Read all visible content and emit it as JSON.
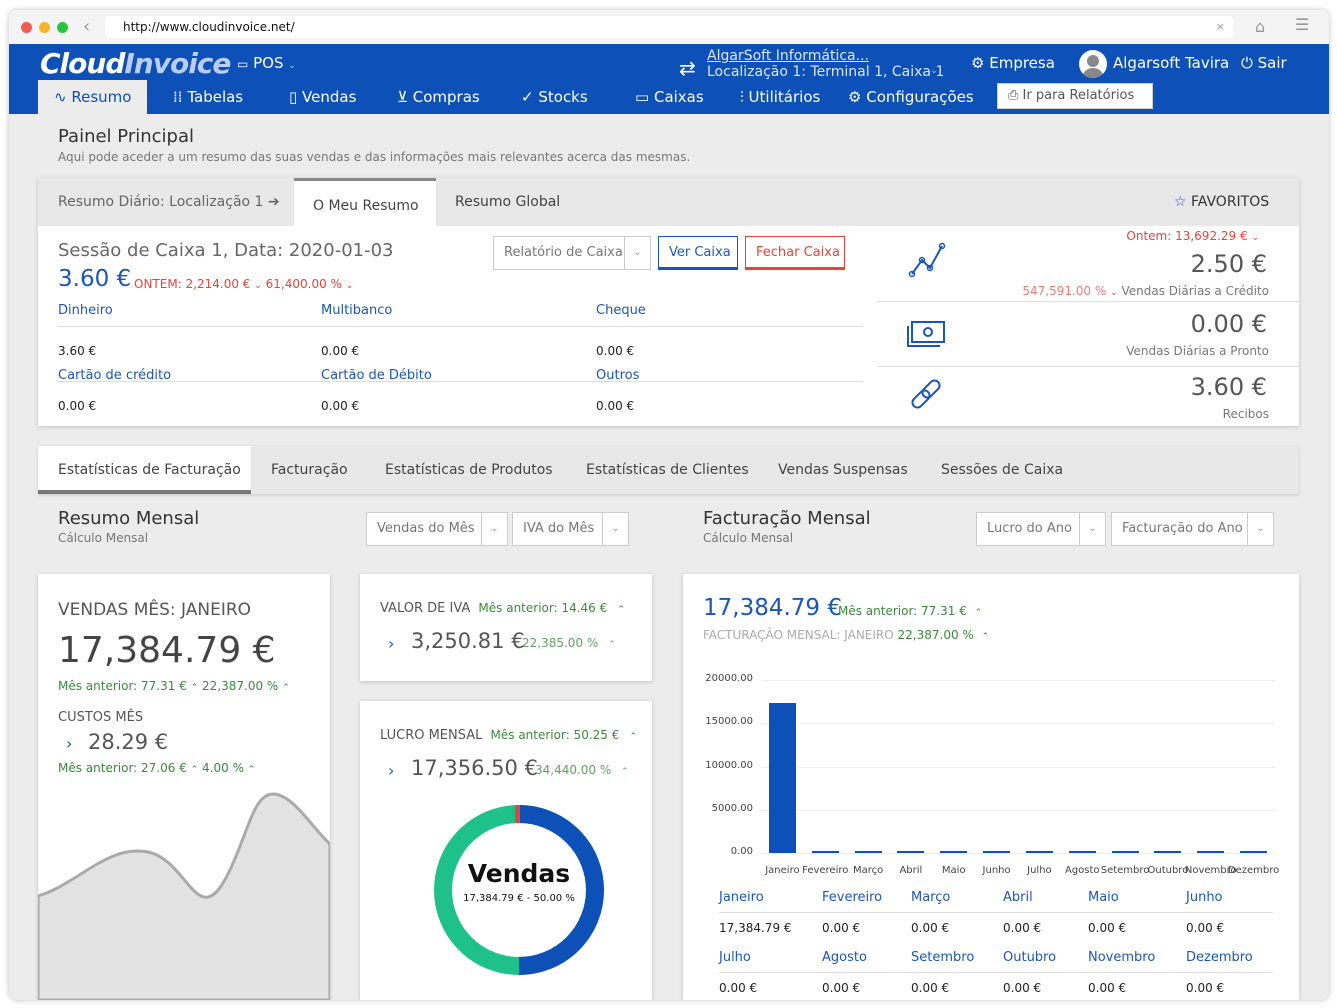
{
  "browser": {
    "url": "http://www.cloudinvoice.net/"
  },
  "app": {
    "logo_cloud": "Cloud",
    "logo_invoice": "Invoice",
    "pos_label": "POS",
    "company_name": "AlgarSoft Informática...",
    "company_location": "Localização 1: Terminal 1, Caixa 1",
    "empresa_label": "Empresa",
    "user_name": "Algarsoft Tavira",
    "logout_label": "Sair",
    "brand_color": "#0d50b8"
  },
  "nav": {
    "tabs": [
      {
        "label": "Resumo",
        "icon": "chart-line-icon"
      },
      {
        "label": "Tabelas",
        "icon": "grid-icon"
      },
      {
        "label": "Vendas",
        "icon": "document-icon"
      },
      {
        "label": "Compras",
        "icon": "cart-icon"
      },
      {
        "label": "Stocks",
        "icon": "check-circle-icon"
      },
      {
        "label": "Caixas",
        "icon": "cash-drawer-icon"
      },
      {
        "label": "Utilitários",
        "icon": "sliders-icon"
      },
      {
        "label": "Configurações",
        "icon": "gear-icon"
      }
    ],
    "reports_button": "Ir para Relatórios"
  },
  "header": {
    "title": "Painel Principal",
    "subtitle": "Aqui pode aceder a um resumo das suas vendas e das informações mais relevantes acerca das mesmas."
  },
  "summary": {
    "tabs": [
      "Resumo Diário: Localização 1",
      "O Meu Resumo",
      "Resumo Global"
    ],
    "favorites_label": "FAVORITOS",
    "session_title": "Sessão de Caixa 1, Data: 2020-01-03",
    "session_total": "3.60 €",
    "session_yesterday": "ONTEM: 2,214.00 €",
    "session_pct": "61,400.00 %",
    "buttons": {
      "report": "Relatório de Caixa",
      "view": "Ver Caixa",
      "close": "Fechar Caixa"
    },
    "payments": [
      {
        "label": "Dinheiro",
        "value": "3.60 €"
      },
      {
        "label": "Multibanco",
        "value": "0.00 €"
      },
      {
        "label": "Cheque",
        "value": "0.00 €"
      },
      {
        "label": "Cartão de crédito",
        "value": "0.00 €"
      },
      {
        "label": "Cartão de Débito",
        "value": "0.00 €"
      },
      {
        "label": "Outros",
        "value": "0.00 €"
      }
    ],
    "kpis": [
      {
        "top": "Ontem: 13,692.29 €",
        "value": "2.50 €",
        "pct": "547,591.00 %",
        "label": "Vendas Diárias a Crédito",
        "icon": "line-chart-icon"
      },
      {
        "value": "0.00 €",
        "label": "Vendas Diárias a Pronto",
        "icon": "cash-icon"
      },
      {
        "value": "3.60 €",
        "label": "Recibos",
        "icon": "link-icon"
      }
    ]
  },
  "stats": {
    "tabs": [
      "Estatísticas de Facturação",
      "Facturação",
      "Estatísticas de Produtos",
      "Estatísticas de Clientes",
      "Vendas Suspensas",
      "Sessões de Caixa"
    ],
    "left_title": "Resumo Mensal",
    "left_subtitle": "Cálculo Mensal",
    "left_selects": [
      "Vendas do Mês",
      "IVA do Mês"
    ],
    "right_title": "Facturação Mensal",
    "right_subtitle": "Cálculo Mensal",
    "right_selects": [
      "Lucro do Ano",
      "Facturação do Ano"
    ],
    "sales_card": {
      "title": "VENDAS MÊS: JANEIRO",
      "value": "17,384.79 €",
      "prev": "Mês anterior: 77.31 €",
      "pct": "22,387.00 %",
      "costs_title": "CUSTOS MÊS",
      "costs_value": "28.29 €",
      "costs_prev": "Mês anterior: 27.06 €",
      "costs_pct": "4.00 %"
    },
    "vat_card": {
      "title": "VALOR DE IVA",
      "prev": "Mês anterior: 14.46 €",
      "value": "3,250.81 €",
      "pct": "22,385.00 %"
    },
    "profit_card": {
      "title": "LUCRO MENSAL",
      "prev": "Mês anterior: 50.25 €",
      "value": "17,356.50 €",
      "pct": "34,440.00 %"
    },
    "donut": {
      "title": "Vendas",
      "label": "17,384.79 € - 50.00 %",
      "colors": [
        "#0d50b8",
        "#1ec18a",
        "#e0463a"
      ]
    },
    "billing_card": {
      "value": "17,384.79 €",
      "prev": "Mês anterior: 77.31 €",
      "subtitle": "FACTURAÇÃO MENSAL: JANEIRO",
      "pct": "22,387.00 %"
    },
    "months_table": [
      {
        "label": "Janeiro",
        "value": "17,384.79 €"
      },
      {
        "label": "Fevereiro",
        "value": "0.00 €"
      },
      {
        "label": "Março",
        "value": "0.00 €"
      },
      {
        "label": "Abril",
        "value": "0.00 €"
      },
      {
        "label": "Maio",
        "value": "0.00 €"
      },
      {
        "label": "Junho",
        "value": "0.00 €"
      },
      {
        "label": "Julho",
        "value": "0.00 €"
      },
      {
        "label": "Agosto",
        "value": "0.00 €"
      },
      {
        "label": "Setembro",
        "value": "0.00 €"
      },
      {
        "label": "Outubro",
        "value": "0.00 €"
      },
      {
        "label": "Novembro",
        "value": "0.00 €"
      },
      {
        "label": "Dezembro",
        "value": "0.00 €"
      }
    ]
  },
  "chart_data": {
    "type": "bar",
    "categories": [
      "Janeiro",
      "Fevereiro",
      "Março",
      "Abril",
      "Maio",
      "Junho",
      "Julho",
      "Agosto",
      "Setembro",
      "Outubro",
      "Novembro",
      "Dezembro"
    ],
    "values": [
      17384.79,
      0,
      0,
      0,
      0,
      0,
      0,
      0,
      0,
      0,
      0,
      0
    ],
    "yticks": [
      "0.00",
      "5000.00",
      "10000.00",
      "15000.00",
      "20000.00"
    ],
    "ylim": [
      0,
      20000
    ],
    "grid": true,
    "color": "#0d50b8"
  }
}
